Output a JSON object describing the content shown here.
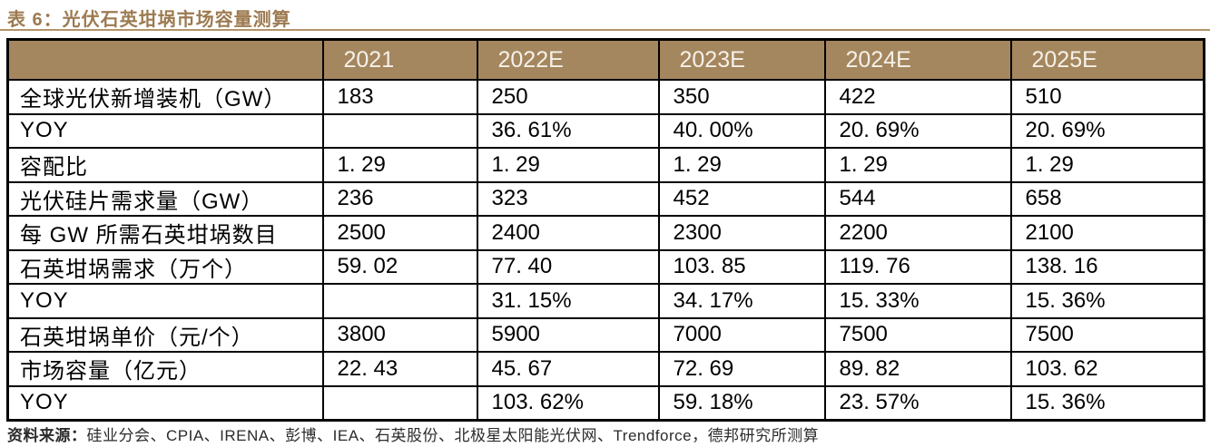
{
  "page": {
    "title": "表 6：光伏石英坩埚市场容量测算",
    "source_prefix": "资料来源：",
    "source_text": "硅业分会、CPIA、IRENA、彭博、IEA、石英股份、北极星太阳能光伏网、Trendforce，德邦研究所测算"
  },
  "colors": {
    "title_text": "#9C7A50",
    "header_bg": "#A5875F",
    "header_text": "#F5F1E9",
    "border": "#000000",
    "rule": "#B3946A"
  },
  "table": {
    "columns": [
      "",
      "2021",
      "2022E",
      "2023E",
      "2024E",
      "2025E"
    ],
    "rows": [
      {
        "label": "全球光伏新增装机（GW）",
        "values": [
          "183",
          "250",
          "350",
          "422",
          "510"
        ]
      },
      {
        "label": "YOY",
        "values": [
          "",
          "36. 61%",
          "40. 00%",
          "20. 69%",
          "20. 69%"
        ]
      },
      {
        "label": "容配比",
        "values": [
          "1. 29",
          "1. 29",
          "1. 29",
          "1. 29",
          "1. 29"
        ]
      },
      {
        "label": "光伏硅片需求量（GW）",
        "values": [
          "236",
          "323",
          "452",
          "544",
          "658"
        ]
      },
      {
        "label": "每 GW 所需石英坩埚数目",
        "values": [
          "2500",
          "2400",
          "2300",
          "2200",
          "2100"
        ]
      },
      {
        "label": "石英坩埚需求（万个）",
        "values": [
          "59. 02",
          "77. 40",
          "103. 85",
          "119. 76",
          "138. 16"
        ]
      },
      {
        "label": "YOY",
        "values": [
          "",
          "31. 15%",
          "34. 17%",
          "15. 33%",
          "15. 36%"
        ]
      },
      {
        "label": "石英坩埚单价（元/个）",
        "values": [
          "3800",
          "5900",
          "7000",
          "7500",
          "7500"
        ]
      },
      {
        "label": "市场容量（亿元）",
        "values": [
          "22. 43",
          "45. 67",
          "72. 69",
          "89. 82",
          "103. 62"
        ]
      },
      {
        "label": "YOY",
        "values": [
          "",
          "103. 62%",
          "59. 18%",
          "23. 57%",
          "15. 36%"
        ]
      }
    ]
  }
}
